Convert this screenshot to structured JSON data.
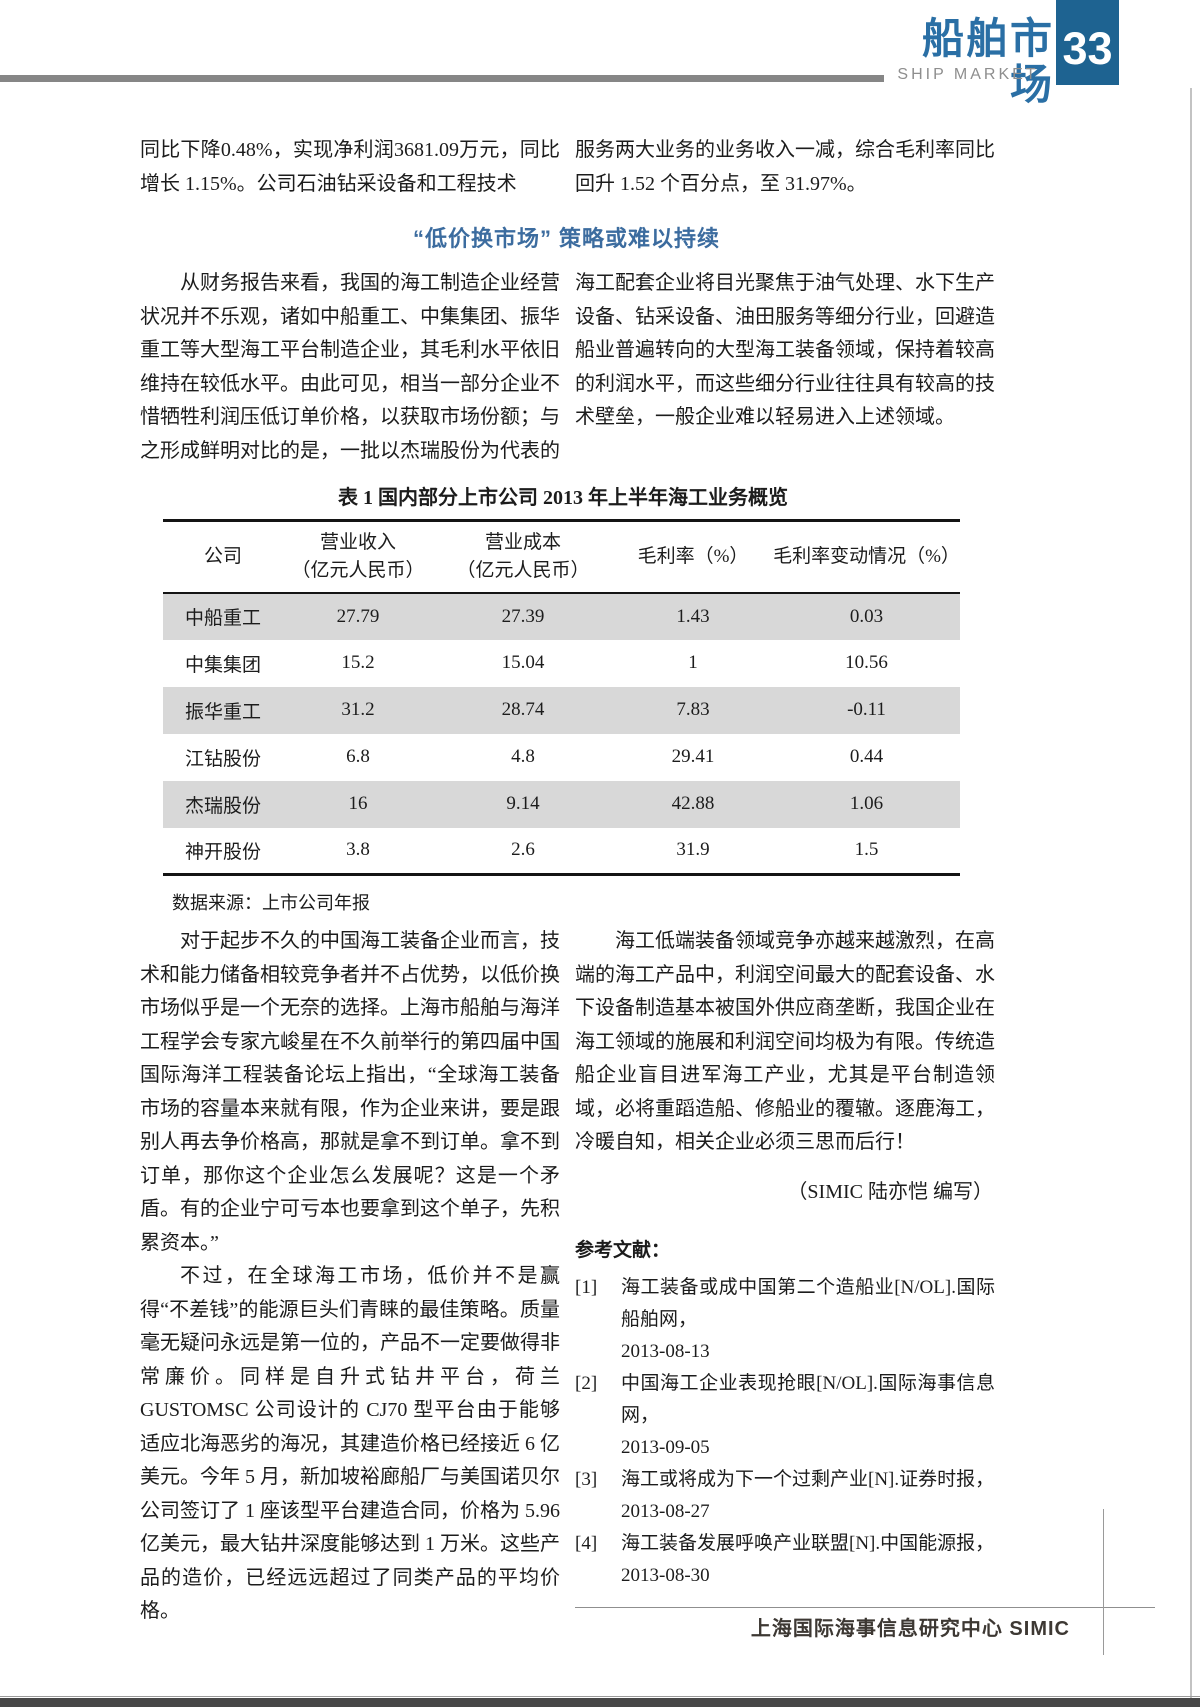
{
  "header": {
    "title_cn": "船舶市场",
    "title_en": "SHIP MARKET",
    "page_number": "33"
  },
  "intro": {
    "left": "同比下降0.48%，实现净利润3681.09万元，同比增长 1.15%。公司石油钻采设备和工程技术",
    "right": "服务两大业务的业务收入一减，综合毛利率同比回升 1.52 个百分点，至 31.97%。"
  },
  "section_heading": "“低价换市场” 策略或难以持续",
  "paragraphs": {
    "left_1": "从财务报告来看，我国的海工制造企业经营状况并不乐观，诸如中船重工、中集集团、振华重工等大型海工平台制造企业，其毛利水平依旧维持在较低水平。由此可见，相当一部分企业不惜牺牲利润压低订单价格，以获取市场份额；与之形成鲜明对比的是，一批以杰瑞股份为代表的",
    "right_1": "海工配套企业将目光聚焦于油气处理、水下生产设备、钻采设备、油田服务等细分行业，回避造船业普遍转向的大型海工装备领域，保持着较高的利润水平，而这些细分行业往往具有较高的技术壁垒，一般企业难以轻易进入上述领域。",
    "left_2": "对于起步不久的中国海工装备企业而言，技术和能力储备相较竞争者并不占优势，以低价换市场似乎是一个无奈的选择。上海市船舶与海洋工程学会专家亢峻星在不久前举行的第四届中国国际海洋工程装备论坛上指出，“全球海工装备市场的容量本来就有限，作为企业来讲，要是跟别人再去争价格高，那就是拿不到订单。拿不到订单，那你这个企业怎么发展呢？这是一个矛盾。有的企业宁可亏本也要拿到这个单子，先积累资本。”",
    "left_3": "不过，在全球海工市场，低价并不是赢得“不差钱”的能源巨头们青睐的最佳策略。质量毫无疑问永远是第一位的，产品不一定要做得非常廉价。同样是自升式钻井平台，荷兰 GUSTOMSC 公司设计的 CJ70 型平台由于能够适应北海恶劣的海况，其建造价格已经接近 6 亿美元。今年 5 月，新加坡裕廊船厂与美国诺贝尔公司签订了 1 座该型平台建造合同，价格为 5.96 亿美元，最大钻井深度能够达到 1 万米。这些产品的造价，已经远远超过了同类产品的平均价格。",
    "right_2": "海工低端装备领域竞争亦越来越激烈，在高端的海工产品中，利润空间最大的配套设备、水下设备制造基本被国外供应商垄断，我国企业在海工领域的施展和利润空间均极为有限。传统造船企业盲目进军海工产业，尤其是平台制造领域，必将重蹈造船、修船业的覆辙。逐鹿海工，冷暖自知，相关企业必须三思而后行！"
  },
  "table": {
    "title": "表 1  国内部分上市公司 2013 年上半年海工业务概览",
    "headers": [
      [
        "公司"
      ],
      [
        "营业收入",
        "（亿元人民币）"
      ],
      [
        "营业成本",
        "（亿元人民币）"
      ],
      [
        "毛利率（%）"
      ],
      [
        "毛利率变动情况（%）"
      ]
    ],
    "rows": [
      [
        "中船重工",
        "27.79",
        "27.39",
        "1.43",
        "0.03"
      ],
      [
        "中集集团",
        "15.2",
        "15.04",
        "1",
        "10.56"
      ],
      [
        "振华重工",
        "31.2",
        "28.74",
        "7.83",
        "-0.11"
      ],
      [
        "江钻股份",
        "6.8",
        "4.8",
        "29.41",
        "0.44"
      ],
      [
        "杰瑞股份",
        "16",
        "9.14",
        "42.88",
        "1.06"
      ],
      [
        "神开股份",
        "3.8",
        "2.6",
        "31.9",
        "1.5"
      ]
    ],
    "source": "数据来源：上市公司年报"
  },
  "byline": "（SIMIC  陆亦恺  编写）",
  "references": {
    "heading": "参考文献：",
    "items": [
      {
        "label": "[1]",
        "text": "海工装备或成中国第二个造船业[N/OL].国际船舶网，",
        "date": "2013-08-13"
      },
      {
        "label": "[2]",
        "text": "中国海工企业表现抢眼[N/OL].国际海事信息网，",
        "date": "2013-09-05"
      },
      {
        "label": "[3]",
        "text": "海工或将成为下一个过剩产业[N].证券时报，",
        "date": "2013-08-27"
      },
      {
        "label": "[4]",
        "text": "海工装备发展呼唤产业联盟[N].中国能源报，",
        "date": "2013-08-30"
      }
    ]
  },
  "footer": {
    "text": "上海国际海事信息研究中心  SIMIC"
  },
  "colors": {
    "brand_blue": "#2a6fa5",
    "box_blue": "#1e6391",
    "heading_blue": "#3c6c9f",
    "row_gray": "#d8d8d8"
  }
}
